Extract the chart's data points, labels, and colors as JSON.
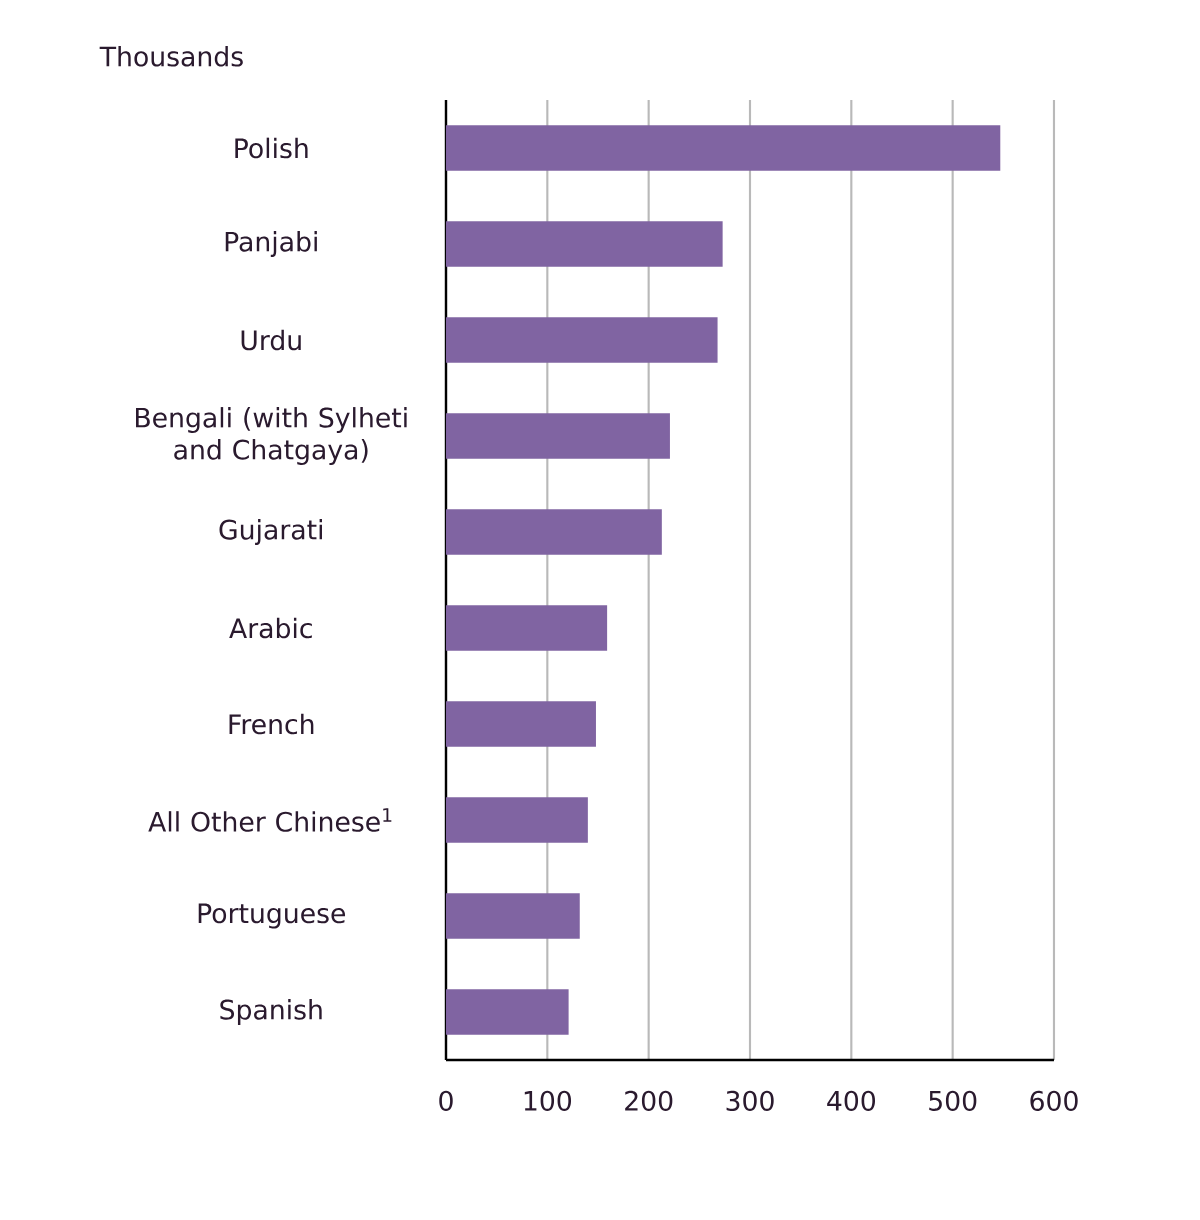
{
  "chart_data": {
    "type": "bar",
    "orientation": "horizontal",
    "xlabel": "Thousands",
    "categories": [
      "Polish",
      "Panjabi",
      "Urdu",
      "Bengali (with Sylheti and Chatgaya)",
      "Gujarati",
      "Arabic",
      "French",
      "All Other  Chinese$^{1}$",
      "Portuguese",
      "Spanish"
    ],
    "values": [
      547,
      273,
      268,
      221,
      213,
      159,
      148,
      140,
      132,
      121
    ],
    "color": "#8064a2",
    "xlim": [
      0,
      600
    ],
    "xticks": [
      0,
      100,
      200,
      300,
      400,
      500,
      600
    ],
    "grid": "x"
  }
}
